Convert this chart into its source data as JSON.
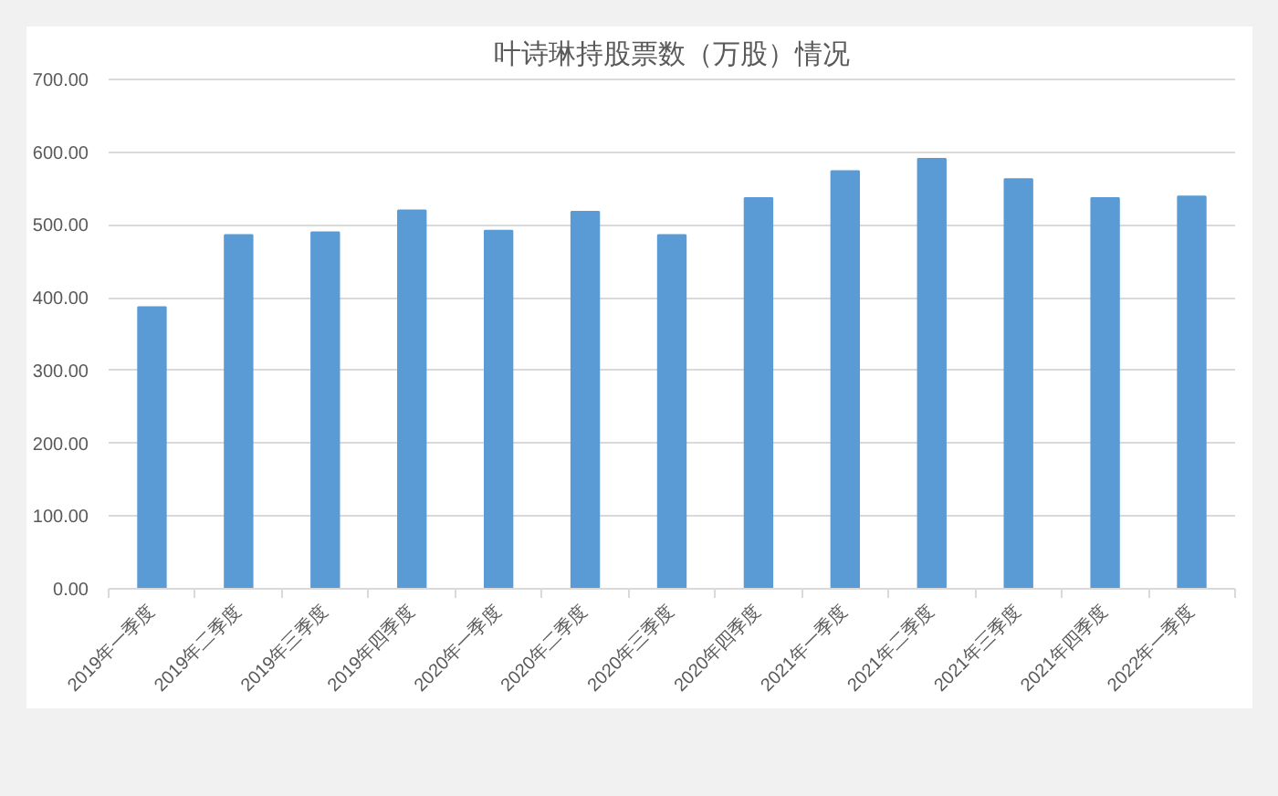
{
  "chart_data": {
    "type": "bar",
    "title": "叶诗琳持股票数（万股）情况",
    "categories": [
      "2019年一季度",
      "2019年二季度",
      "2019年三季度",
      "2019年四季度",
      "2020年一季度",
      "2020年二季度",
      "2020年三季度",
      "2020年四季度",
      "2021年一季度",
      "2021年二季度",
      "2021年三季度",
      "2021年四季度",
      "2022年一季度"
    ],
    "values": [
      387,
      486,
      490,
      520,
      492,
      518,
      486,
      537,
      574,
      591,
      563,
      537,
      539
    ],
    "color": "#5b9bd5",
    "ylim": [
      0,
      700
    ],
    "yticks": [
      {
        "value": 0,
        "label": "0.00"
      },
      {
        "value": 100,
        "label": "100.00"
      },
      {
        "value": 200,
        "label": "200.00"
      },
      {
        "value": 300,
        "label": "300.00"
      },
      {
        "value": 400,
        "label": "400.00"
      },
      {
        "value": 500,
        "label": "500.00"
      },
      {
        "value": 600,
        "label": "600.00"
      },
      {
        "value": 700,
        "label": "700.00"
      }
    ],
    "grid": "y"
  }
}
